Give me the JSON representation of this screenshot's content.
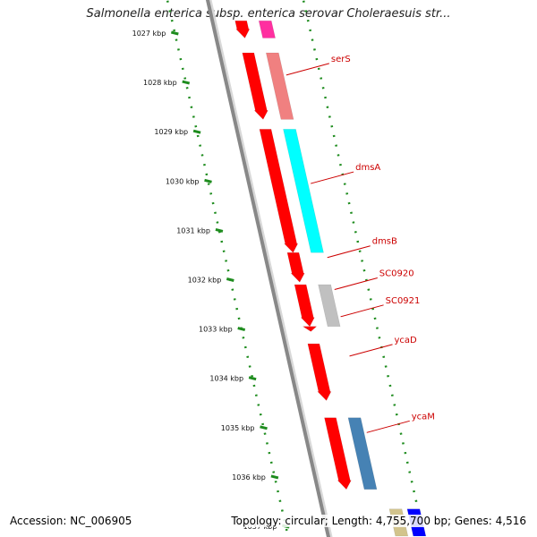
{
  "title": "Salmonella enterica subsp. enterica serovar Choleraesuis str...",
  "footer": {
    "accession": "Accession: NC_006905",
    "summary": "Topology: circular; Length: 4,755,700 bp; Genes: 4,516"
  },
  "ticks": [
    {
      "label": "1027 kbp",
      "kbp": 1027
    },
    {
      "label": "1028 kbp",
      "kbp": 1028
    },
    {
      "label": "1029 kbp",
      "kbp": 1029
    },
    {
      "label": "1030 kbp",
      "kbp": 1030
    },
    {
      "label": "1031 kbp",
      "kbp": 1031
    },
    {
      "label": "1032 kbp",
      "kbp": 1032
    },
    {
      "label": "1033 kbp",
      "kbp": 1033
    },
    {
      "label": "1034 kbp",
      "kbp": 1034
    },
    {
      "label": "1035 kbp",
      "kbp": 1035
    },
    {
      "label": "1036 kbp",
      "kbp": 1036
    },
    {
      "label": "1037 kbp",
      "kbp": 1037
    }
  ],
  "genes": [
    {
      "name": "",
      "start": 1026.75,
      "end": 1027.1,
      "track": "cds",
      "color": "#ff0000"
    },
    {
      "name": "",
      "start": 1026.75,
      "end": 1027.1,
      "track": "feature",
      "color": "#ff2fa0"
    },
    {
      "name": "serS",
      "start": 1027.4,
      "end": 1028.75,
      "track": "cds",
      "color": "#ff0000"
    },
    {
      "name": "serS",
      "start": 1027.4,
      "end": 1028.75,
      "track": "feature",
      "color": "#f08080"
    },
    {
      "name": "dmsA",
      "start": 1028.95,
      "end": 1031.45,
      "track": "cds",
      "color": "#ff0000"
    },
    {
      "name": "dmsA",
      "start": 1028.95,
      "end": 1031.45,
      "track": "feature",
      "color": "#00ffff"
    },
    {
      "name": "dmsB",
      "start": 1031.45,
      "end": 1032.05,
      "track": "cds",
      "color": "#ff0000"
    },
    {
      "name": "SC0920",
      "start": 1032.1,
      "end": 1032.95,
      "track": "cds",
      "color": "#ff0000"
    },
    {
      "name": "SC0920",
      "start": 1032.1,
      "end": 1032.95,
      "track": "feature",
      "color": "#c0c0c0"
    },
    {
      "name": "SC0921",
      "start": 1032.95,
      "end": 1033.05,
      "track": "cds",
      "color": "#ff0000"
    },
    {
      "name": "ycaD",
      "start": 1033.3,
      "end": 1034.45,
      "track": "cds",
      "color": "#ff0000"
    },
    {
      "name": "ycaM",
      "start": 1034.8,
      "end": 1036.25,
      "track": "cds",
      "color": "#ff0000"
    },
    {
      "name": "ycaM",
      "start": 1034.8,
      "end": 1036.25,
      "track": "feature",
      "color": "#4682b4"
    },
    {
      "name": "",
      "start": 1036.65,
      "end": 1037.2,
      "track": "far1",
      "color": "#d2c48c"
    },
    {
      "name": "",
      "start": 1036.65,
      "end": 1037.2,
      "track": "far2",
      "color": "#0000ff"
    }
  ],
  "gene_labels": [
    {
      "text": "serS",
      "kbp": 1027.85
    },
    {
      "text": "dmsA",
      "kbp": 1030.05
    },
    {
      "text": "dmsB",
      "kbp": 1031.55
    },
    {
      "text": "SC0920",
      "kbp": 1032.2
    },
    {
      "text": "SC0921",
      "kbp": 1032.75
    },
    {
      "text": "ycaD",
      "kbp": 1033.55
    },
    {
      "text": "ycaM",
      "kbp": 1035.1
    }
  ],
  "colors": {
    "backbone": "#888888",
    "ruler": "#1e8c1e",
    "label": "#cc0000",
    "leader": "#cc0000"
  }
}
